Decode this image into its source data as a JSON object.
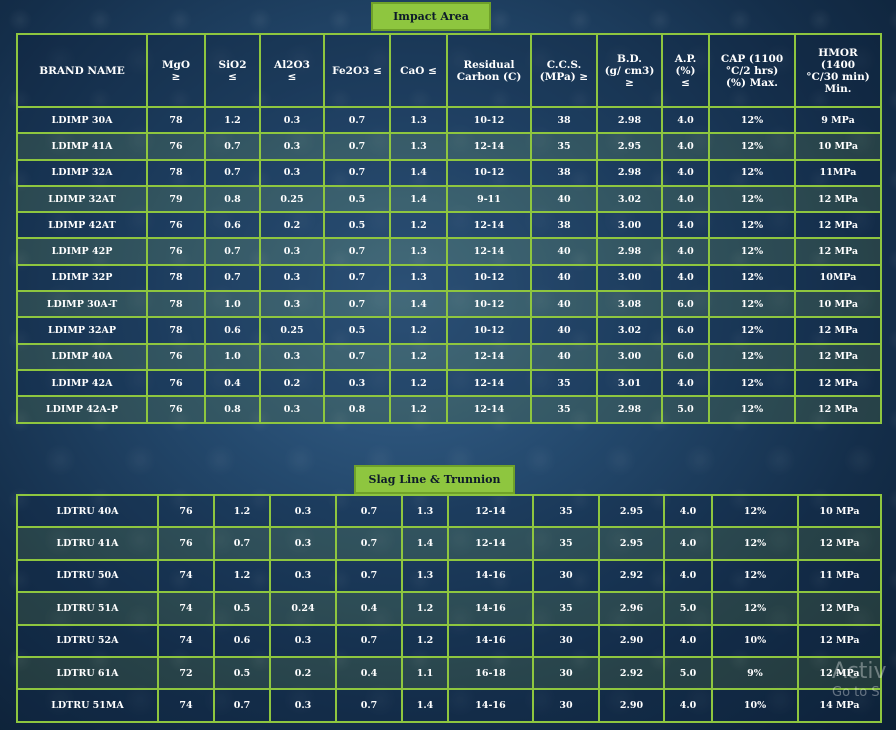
{
  "sections": {
    "impact": {
      "title": "Impact Area"
    },
    "slag": {
      "title": "Slag Line & Trunnion"
    }
  },
  "columns": [
    "BRAND NAME",
    "MgO\n≥",
    "SiO2\n≤",
    "Al2O3\n≤",
    "Fe2O3 ≤",
    "CaO ≤",
    "Residual\nCarbon (C)",
    "C.C.S.\n(MPa) ≥",
    "B.D.\n(g/ cm3)\n≥",
    "A.P.\n(%)\n≤",
    "CAP (1100\n°C/2 hrs)\n(%) Max.",
    "HMOR\n(1400\n°C/30 min)\nMin."
  ],
  "impact_rows": [
    [
      "LDIMP 30A",
      "78",
      "1.2",
      "0.3",
      "0.7",
      "1.3",
      "10-12",
      "38",
      "2.98",
      "4.0",
      "12%",
      "9 MPa"
    ],
    [
      "LDIMP 41A",
      "76",
      "0.7",
      "0.3",
      "0.7",
      "1.3",
      "12-14",
      "35",
      "2.95",
      "4.0",
      "12%",
      "10 MPa"
    ],
    [
      "LDIMP 32A",
      "78",
      "0.7",
      "0.3",
      "0.7",
      "1.4",
      "10-12",
      "38",
      "2.98",
      "4.0",
      "12%",
      "11MPa"
    ],
    [
      "LDIMP 32AT",
      "79",
      "0.8",
      "0.25",
      "0.5",
      "1.4",
      "9-11",
      "40",
      "3.02",
      "4.0",
      "12%",
      "12 MPa"
    ],
    [
      "LDIMP 42AT",
      "76",
      "0.6",
      "0.2",
      "0.5",
      "1.2",
      "12-14",
      "38",
      "3.00",
      "4.0",
      "12%",
      "12 MPa"
    ],
    [
      "LDIMP 42P",
      "76",
      "0.7",
      "0.3",
      "0.7",
      "1.3",
      "12-14",
      "40",
      "2.98",
      "4.0",
      "12%",
      "12 MPa"
    ],
    [
      "LDIMP 32P",
      "78",
      "0.7",
      "0.3",
      "0.7",
      "1.3",
      "10-12",
      "40",
      "3.00",
      "4.0",
      "12%",
      "10MPa"
    ],
    [
      "LDIMP 30A-T",
      "78",
      "1.0",
      "0.3",
      "0.7",
      "1.4",
      "10-12",
      "40",
      "3.08",
      "6.0",
      "12%",
      "10 MPa"
    ],
    [
      "LDIMP 32AP",
      "78",
      "0.6",
      "0.25",
      "0.5",
      "1.2",
      "10-12",
      "40",
      "3.02",
      "6.0",
      "12%",
      "12 MPa"
    ],
    [
      "LDIMP 40A",
      "76",
      "1.0",
      "0.3",
      "0.7",
      "1.2",
      "12-14",
      "40",
      "3.00",
      "6.0",
      "12%",
      "12 MPa"
    ],
    [
      "LDIMP 42A",
      "76",
      "0.4",
      "0.2",
      "0.3",
      "1.2",
      "12-14",
      "35",
      "3.01",
      "4.0",
      "12%",
      "12 MPa"
    ],
    [
      "LDIMP 42A-P",
      "76",
      "0.8",
      "0.3",
      "0.8",
      "1.2",
      "12-14",
      "35",
      "2.98",
      "5.0",
      "12%",
      "12 MPa"
    ]
  ],
  "slag_rows": [
    [
      "LDTRU 40A",
      "76",
      "1.2",
      "0.3",
      "0.7",
      "1.3",
      "12-14",
      "35",
      "2.95",
      "4.0",
      "12%",
      "10 MPa"
    ],
    [
      "LDTRU 41A",
      "76",
      "0.7",
      "0.3",
      "0.7",
      "1.4",
      "12-14",
      "35",
      "2.95",
      "4.0",
      "12%",
      "12 MPa"
    ],
    [
      "LDTRU 50A",
      "74",
      "1.2",
      "0.3",
      "0.7",
      "1.3",
      "14-16",
      "30",
      "2.92",
      "4.0",
      "12%",
      "11 MPa"
    ],
    [
      "LDTRU 51A",
      "74",
      "0.5",
      "0.24",
      "0.4",
      "1.2",
      "14-16",
      "35",
      "2.96",
      "5.0",
      "12%",
      "12 MPa"
    ],
    [
      "LDTRU 52A",
      "74",
      "0.6",
      "0.3",
      "0.7",
      "1.2",
      "14-16",
      "30",
      "2.90",
      "4.0",
      "10%",
      "12 MPa"
    ],
    [
      "LDTRU 61A",
      "72",
      "0.5",
      "0.2",
      "0.4",
      "1.1",
      "16-18",
      "30",
      "2.92",
      "5.0",
      "9%",
      "12 MPa"
    ],
    [
      "LDTRU 51MA",
      "74",
      "0.7",
      "0.3",
      "0.7",
      "1.4",
      "14-16",
      "30",
      "2.90",
      "4.0",
      "10%",
      "14 MPa"
    ]
  ],
  "overlay": {
    "line1": "Activ",
    "line2": "Go to S"
  },
  "colors": {
    "accent": "#8ec63f",
    "background": "#1c3d5e",
    "text": "#ffffff"
  }
}
